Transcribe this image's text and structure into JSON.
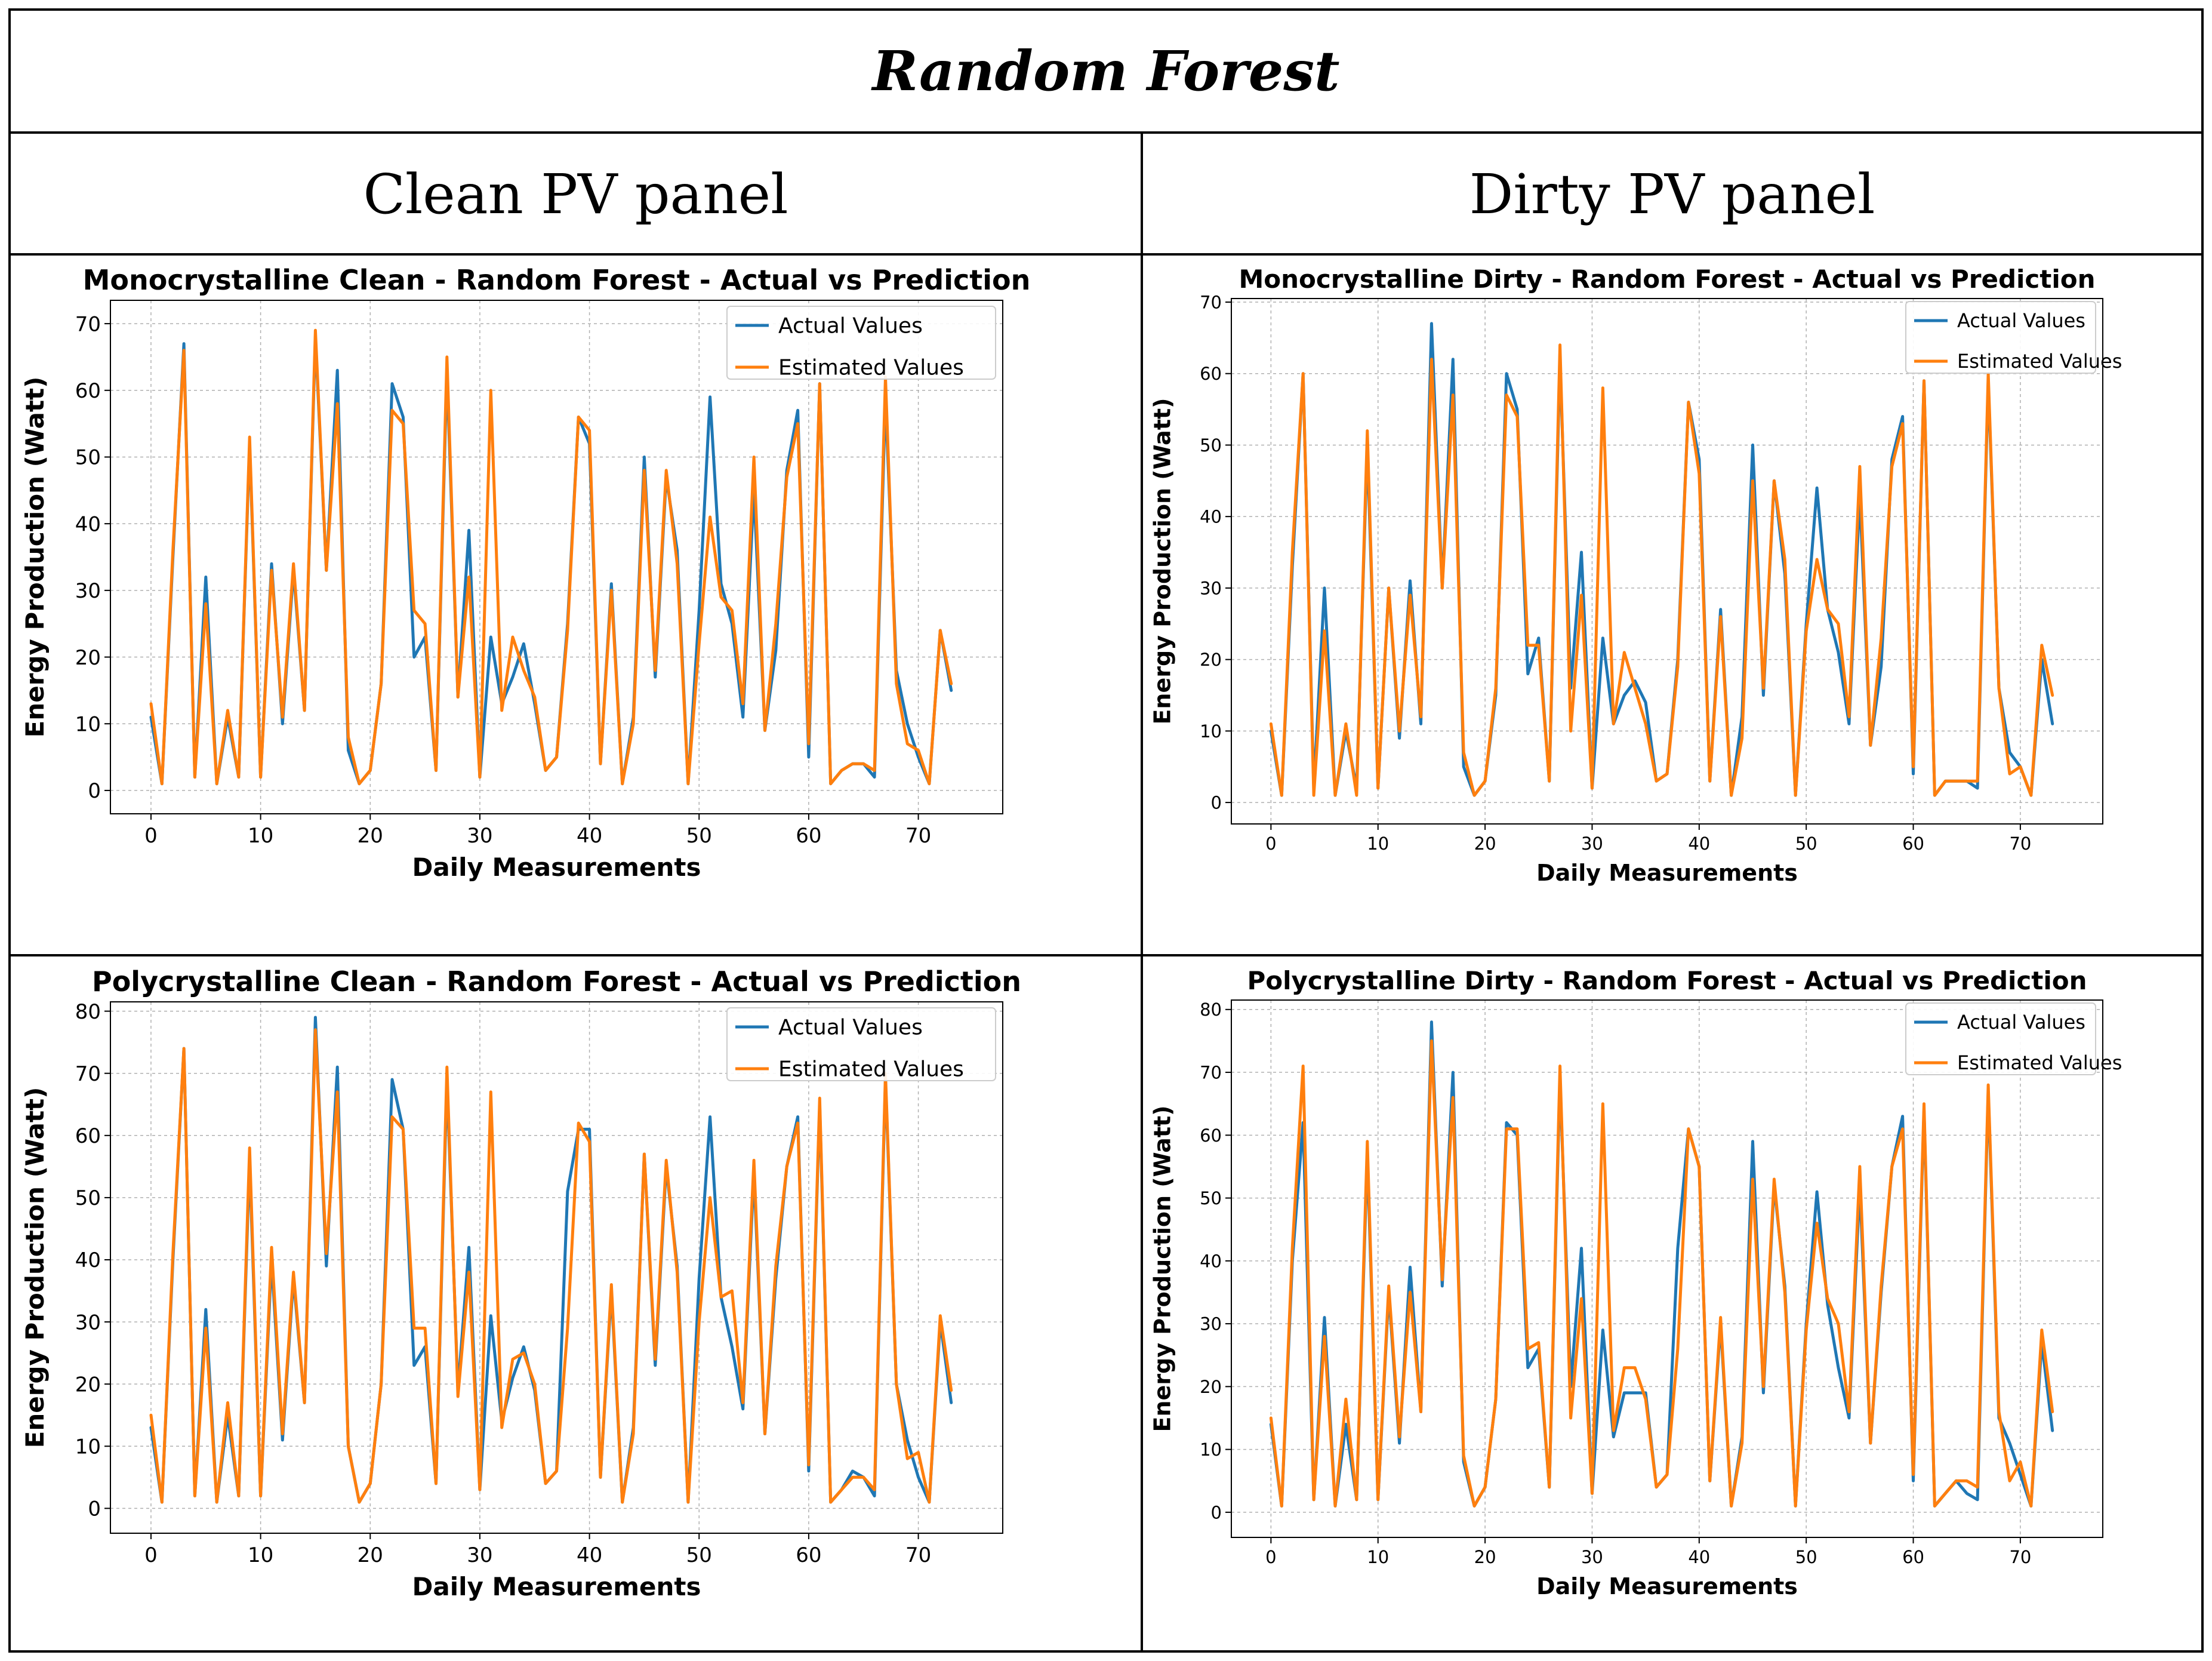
{
  "page_title": "Random Forest",
  "columns": [
    "Clean PV panel",
    "Dirty PV panel"
  ],
  "colors": {
    "actual": "#1f77b4",
    "estimated": "#ff7f0e"
  },
  "chart_data": [
    {
      "type": "line",
      "title": "Monocrystalline Clean  - Random Forest - Actual vs Prediction",
      "xlabel": "Daily Measurements",
      "ylabel": "Energy Production (Watt)",
      "xlim": [
        -3.7,
        77.7
      ],
      "ylim": [
        -3.5,
        73.5
      ],
      "xticks": [
        0,
        10,
        20,
        30,
        40,
        50,
        60,
        70
      ],
      "yticks": [
        0,
        10,
        20,
        30,
        40,
        50,
        60,
        70
      ],
      "legend": [
        "Actual Values",
        "Estimated Values"
      ],
      "series": [
        {
          "name": "Actual Values",
          "values": [
            11,
            1,
            35,
            67,
            2,
            32,
            1,
            11,
            2,
            52,
            2,
            34,
            10,
            33,
            12,
            68,
            33,
            63,
            6,
            1,
            3,
            16,
            61,
            56,
            20,
            23,
            3,
            63,
            14,
            39,
            2,
            23,
            13,
            17,
            22,
            13,
            3,
            5,
            25,
            56,
            52,
            4,
            31,
            1,
            11,
            50,
            17,
            47,
            36,
            1,
            27,
            59,
            31,
            25,
            11,
            45,
            9,
            21,
            48,
            57,
            5,
            61,
            1,
            3,
            4,
            4,
            2,
            59,
            18,
            10,
            5,
            1,
            24,
            15
          ]
        },
        {
          "name": "Estimated Values",
          "values": [
            13,
            1,
            36,
            66,
            2,
            28,
            1,
            12,
            2,
            53,
            2,
            33,
            11,
            34,
            12,
            69,
            33,
            58,
            8,
            1,
            3,
            16,
            57,
            55,
            27,
            25,
            3,
            65,
            14,
            32,
            2,
            60,
            12,
            23,
            18,
            14,
            3,
            5,
            24,
            56,
            54,
            4,
            30,
            1,
            10,
            48,
            18,
            48,
            34,
            1,
            22,
            41,
            29,
            27,
            13,
            50,
            9,
            25,
            47,
            55,
            7,
            61,
            1,
            3,
            4,
            4,
            3,
            62,
            16,
            7,
            6,
            1,
            24,
            16
          ]
        }
      ]
    },
    {
      "type": "line",
      "title": "Monocrystalline Dirty - Random Forest - Actual vs Prediction",
      "xlabel": "Daily Measurements",
      "ylabel": "Energy Production (Watt)",
      "xlim": [
        -3.7,
        77.7
      ],
      "ylim": [
        -3.0,
        70.5
      ],
      "xticks": [
        0,
        10,
        20,
        30,
        40,
        50,
        60,
        70
      ],
      "yticks": [
        0,
        10,
        20,
        30,
        40,
        50,
        60,
        70
      ],
      "legend": [
        "Actual Values",
        "Estimated Values"
      ],
      "series": [
        {
          "name": "Actual Values",
          "values": [
            10,
            1,
            33,
            60,
            2,
            30,
            1,
            10,
            2,
            50,
            2,
            30,
            9,
            31,
            11,
            67,
            30,
            62,
            5,
            1,
            3,
            15,
            60,
            55,
            18,
            23,
            3,
            62,
            16,
            35,
            2,
            23,
            11,
            15,
            17,
            14,
            3,
            4,
            20,
            56,
            48,
            3,
            27,
            1,
            12,
            50,
            15,
            45,
            32,
            1,
            25,
            44,
            27,
            21,
            11,
            43,
            8,
            19,
            48,
            54,
            4,
            59,
            1,
            3,
            3,
            3,
            2,
            59,
            16,
            7,
            5,
            1,
            20,
            11
          ]
        },
        {
          "name": "Estimated Values",
          "values": [
            11,
            1,
            35,
            60,
            1,
            24,
            1,
            11,
            1,
            52,
            2,
            30,
            10,
            29,
            12,
            62,
            30,
            57,
            7,
            1,
            3,
            16,
            57,
            54,
            22,
            22,
            3,
            64,
            10,
            29,
            2,
            58,
            11,
            21,
            16,
            11,
            3,
            4,
            19,
            56,
            46,
            3,
            26,
            1,
            9,
            45,
            16,
            45,
            34,
            1,
            24,
            34,
            27,
            25,
            12,
            47,
            8,
            23,
            47,
            53,
            5,
            59,
            1,
            3,
            3,
            3,
            3,
            60,
            16,
            4,
            5,
            1,
            22,
            15
          ]
        }
      ]
    },
    {
      "type": "line",
      "title": "Polycrystalline Clean - Random Forest - Actual vs Prediction",
      "xlabel": "Daily Measurements",
      "ylabel": "Energy Production (Watt)",
      "xlim": [
        -3.7,
        77.7
      ],
      "ylim": [
        -4.0,
        81.5
      ],
      "xticks": [
        0,
        10,
        20,
        30,
        40,
        50,
        60,
        70
      ],
      "yticks": [
        0,
        10,
        20,
        30,
        40,
        50,
        60,
        70,
        80
      ],
      "legend": [
        "Actual Values",
        "Estimated Values"
      ],
      "series": [
        {
          "name": "Actual Values",
          "values": [
            13,
            1,
            40,
            74,
            2,
            32,
            1,
            15,
            2,
            56,
            2,
            40,
            11,
            37,
            17,
            79,
            39,
            71,
            10,
            1,
            4,
            20,
            69,
            61,
            23,
            26,
            4,
            69,
            19,
            42,
            3,
            31,
            14,
            21,
            26,
            19,
            4,
            6,
            51,
            61,
            61,
            5,
            35,
            1,
            13,
            57,
            23,
            55,
            39,
            1,
            37,
            63,
            34,
            26,
            16,
            54,
            12,
            37,
            55,
            63,
            6,
            65,
            1,
            3,
            6,
            5,
            2,
            69,
            20,
            11,
            5,
            1,
            30,
            17
          ]
        },
        {
          "name": "Estimated Values",
          "values": [
            15,
            1,
            41,
            74,
            2,
            29,
            1,
            17,
            2,
            58,
            2,
            42,
            12,
            38,
            17,
            77,
            41,
            67,
            10,
            1,
            4,
            20,
            63,
            61,
            29,
            29,
            4,
            71,
            18,
            38,
            3,
            67,
            13,
            24,
            25,
            20,
            4,
            6,
            29,
            62,
            59,
            5,
            36,
            1,
            12,
            57,
            24,
            56,
            38,
            1,
            30,
            50,
            34,
            35,
            17,
            56,
            12,
            39,
            55,
            62,
            7,
            66,
            1,
            3,
            5,
            5,
            3,
            70,
            20,
            8,
            9,
            1,
            31,
            19
          ]
        }
      ]
    },
    {
      "type": "line",
      "title": "Polycrystalline Dirty - Random Forest - Actual vs Prediction",
      "xlabel": "Daily Measurements",
      "ylabel": "Energy Production (Watt)",
      "xlim": [
        -3.7,
        77.7
      ],
      "ylim": [
        -4.0,
        81.5
      ],
      "xticks": [
        0,
        10,
        20,
        30,
        40,
        50,
        60,
        70
      ],
      "yticks": [
        0,
        10,
        20,
        30,
        40,
        50,
        60,
        70,
        80
      ],
      "legend": [
        "Actual Values",
        "Estimated Values"
      ],
      "series": [
        {
          "name": "Actual Values",
          "values": [
            14,
            1,
            40,
            62,
            2,
            31,
            1,
            14,
            2,
            57,
            2,
            35,
            11,
            39,
            16,
            78,
            36,
            70,
            8,
            1,
            4,
            18,
            62,
            60,
            23,
            26,
            4,
            69,
            20,
            42,
            3,
            29,
            12,
            19,
            19,
            19,
            4,
            6,
            42,
            61,
            55,
            5,
            30,
            1,
            12,
            59,
            19,
            52,
            36,
            1,
            30,
            51,
            33,
            23,
            15,
            52,
            11,
            35,
            55,
            63,
            5,
            64,
            1,
            3,
            5,
            3,
            2,
            67,
            15,
            11,
            6,
            1,
            27,
            13
          ]
        },
        {
          "name": "Estimated Values",
          "values": [
            15,
            1,
            42,
            71,
            2,
            28,
            1,
            18,
            2,
            59,
            2,
            36,
            12,
            35,
            16,
            75,
            37,
            66,
            9,
            1,
            4,
            18,
            61,
            61,
            26,
            27,
            4,
            71,
            15,
            34,
            3,
            65,
            13,
            23,
            23,
            18,
            4,
            6,
            26,
            61,
            55,
            5,
            31,
            1,
            11,
            53,
            20,
            53,
            35,
            1,
            29,
            46,
            34,
            30,
            16,
            55,
            11,
            36,
            55,
            61,
            6,
            65,
            1,
            3,
            5,
            5,
            4,
            68,
            16,
            5,
            8,
            1,
            29,
            16
          ]
        }
      ]
    }
  ]
}
